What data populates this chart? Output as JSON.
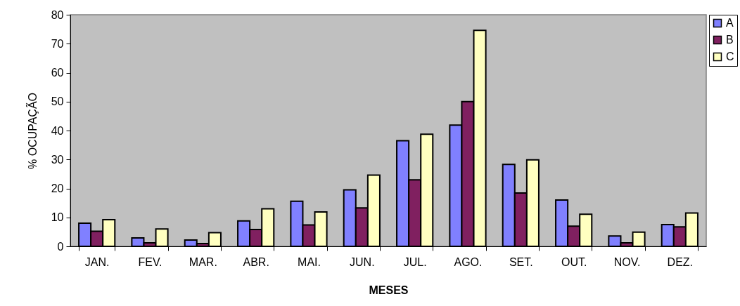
{
  "chart_data": {
    "type": "bar",
    "xlabel": "MESES",
    "ylabel": "% OCUPAÇÃO",
    "categories": [
      "JAN.",
      "FEV.",
      "MAR.",
      "ABR.",
      "MAI.",
      "JUN.",
      "JUL.",
      "AGO.",
      "SET.",
      "OUT.",
      "NOV.",
      "DEZ."
    ],
    "series": [
      {
        "name": "A",
        "color": "#8080ff",
        "values": [
          8,
          2.9,
          2.2,
          8.8,
          15.6,
          19.5,
          36.5,
          41.9,
          28.3,
          16,
          3.6,
          7.5
        ]
      },
      {
        "name": "B",
        "color": "#802060",
        "values": [
          5.2,
          1.2,
          1,
          5.8,
          7.4,
          13.3,
          23,
          50,
          18.4,
          7,
          1.2,
          6.7
        ]
      },
      {
        "name": "C",
        "color": "#ffffc0",
        "values": [
          9.2,
          6,
          4.7,
          13,
          11.9,
          24.6,
          38.7,
          74.6,
          29.9,
          11.1,
          4.9,
          11.5
        ]
      }
    ],
    "ylim": [
      0,
      80
    ],
    "yticks": [
      0,
      10,
      20,
      30,
      40,
      50,
      60,
      70,
      80
    ],
    "grid": false,
    "legend": "top right"
  }
}
